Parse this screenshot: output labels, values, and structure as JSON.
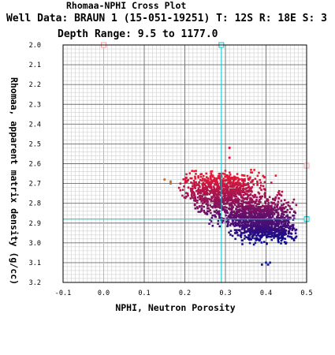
{
  "header": {
    "title": "Rhomaa-NPHI Cross Plot",
    "well_line": "Well Data: BRAUN 1 (15-051-19251) T: 12S R: 18E S: 3",
    "depth_line": "Depth Range: 9.5 to 1177.0"
  },
  "chart_data": {
    "type": "scatter",
    "xlabel": "NPHI, Neutron Porosity",
    "ylabel": "Rhomaa, apparent matrix density (g/cc)",
    "xlim": [
      -0.1,
      0.5
    ],
    "ylim": [
      3.2,
      2.0
    ],
    "y_inverted": true,
    "x_ticks": [
      "-0.1",
      "0.0",
      "0.1",
      "0.2",
      "0.3",
      "0.4",
      "0.5"
    ],
    "y_ticks": [
      "2.0",
      "2.1",
      "2.2",
      "2.3",
      "2.4",
      "2.5",
      "2.6",
      "2.7",
      "2.8",
      "2.9",
      "3.0",
      "3.1",
      "3.2"
    ],
    "grid": true,
    "reference_lines": [
      {
        "orientation": "vertical",
        "x": 0.0,
        "color": "#f0a0a0"
      },
      {
        "orientation": "vertical",
        "x": 0.29,
        "color": "#00c8d0"
      },
      {
        "orientation": "horizontal",
        "y": 2.88,
        "color": "#00c8d0"
      }
    ],
    "markers": [
      {
        "x": 0.0,
        "y": 2.0,
        "color": "#f0a0a0"
      },
      {
        "x": 0.29,
        "y": 2.0,
        "color": "#00c8d0"
      },
      {
        "x": 0.5,
        "y": 2.61,
        "color": "#f0a0a0"
      },
      {
        "x": 0.5,
        "y": 2.88,
        "color": "#00c8d0"
      }
    ],
    "color_scale": {
      "top_color": "#ff1a2a",
      "bottom_color": "#0a0a90",
      "y_range": [
        2.62,
        3.0
      ]
    },
    "clusters": [
      {
        "cx": 0.29,
        "cy": 2.74,
        "sx": 0.05,
        "sy": 0.055,
        "n": 900
      },
      {
        "cx": 0.38,
        "cy": 2.87,
        "sx": 0.05,
        "sy": 0.05,
        "n": 1000
      },
      {
        "cx": 0.41,
        "cy": 2.94,
        "sx": 0.035,
        "sy": 0.03,
        "n": 300
      }
    ],
    "outliers": [
      {
        "x": 0.165,
        "y": 2.7,
        "color": "#c87030"
      },
      {
        "x": 0.165,
        "y": 2.69,
        "color": "#c87030"
      },
      {
        "x": 0.15,
        "y": 2.68,
        "color": "#c87030"
      },
      {
        "x": 0.31,
        "y": 2.52,
        "color": "#e01040"
      },
      {
        "x": 0.31,
        "y": 2.57,
        "color": "#e01040"
      },
      {
        "x": 0.39,
        "y": 3.11,
        "color": "#1020a0"
      },
      {
        "x": 0.405,
        "y": 3.11,
        "color": "#1020a0"
      },
      {
        "x": 0.41,
        "y": 3.1,
        "color": "#1020a0"
      },
      {
        "x": 0.4,
        "y": 3.1,
        "color": "#1020a0"
      }
    ]
  }
}
